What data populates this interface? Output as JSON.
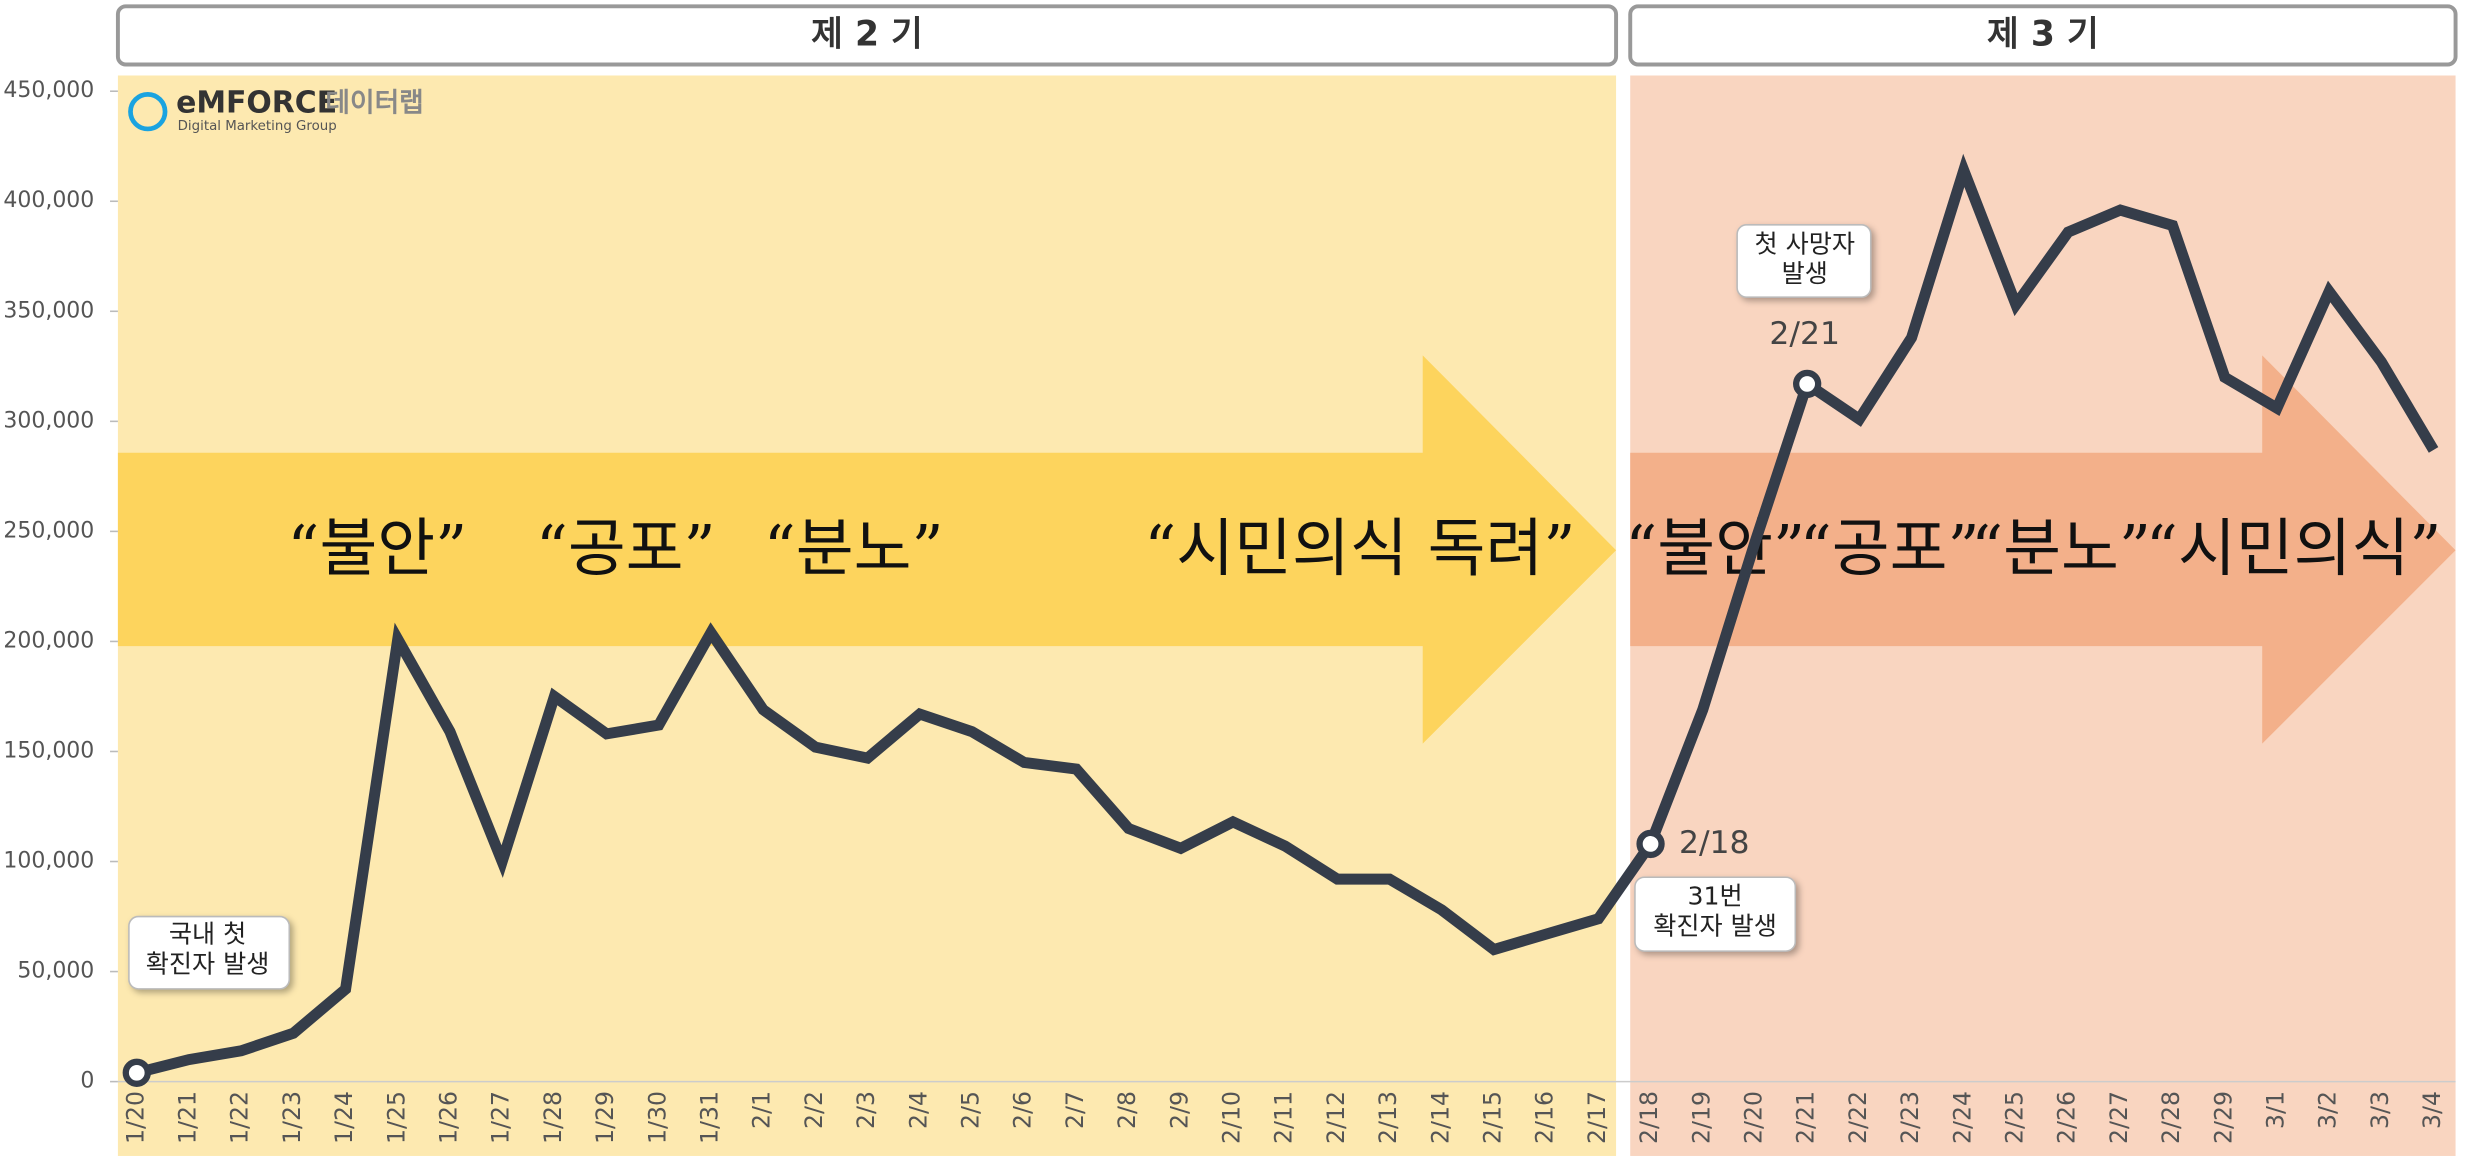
{
  "chart_data": {
    "type": "line",
    "categories": [
      "1/20",
      "1/21",
      "1/22",
      "1/23",
      "1/24",
      "1/25",
      "1/26",
      "1/27",
      "1/28",
      "1/29",
      "1/30",
      "1/31",
      "2/1",
      "2/2",
      "2/3",
      "2/4",
      "2/5",
      "2/6",
      "2/7",
      "2/8",
      "2/9",
      "2/10",
      "2/11",
      "2/12",
      "2/13",
      "2/14",
      "2/15",
      "2/16",
      "2/17",
      "2/18",
      "2/19",
      "2/20",
      "2/21",
      "2/22",
      "2/23",
      "2/24",
      "2/25",
      "2/26",
      "2/27",
      "2/28",
      "2/29",
      "3/1",
      "3/2",
      "3/3",
      "3/4"
    ],
    "values": [
      4000,
      10000,
      14000,
      22000,
      42000,
      201000,
      159000,
      100000,
      175000,
      158000,
      162000,
      204000,
      169000,
      152000,
      147000,
      167000,
      159000,
      145000,
      142000,
      115000,
      106000,
      118000,
      107000,
      92000,
      92000,
      78000,
      60000,
      67000,
      74000,
      108000,
      169000,
      245000,
      317000,
      301000,
      338000,
      414000,
      353000,
      386000,
      396000,
      389000,
      320000,
      306000,
      359000,
      327000,
      287000
    ],
    "color": "#353d4a",
    "ylim": [
      0,
      450000
    ],
    "yticks": [
      0,
      {
        "value": 50000,
        "label": "50,000"
      },
      {
        "value": 100000,
        "label": "100,000"
      },
      {
        "value": 150000,
        "label": "150,000"
      },
      {
        "value": 200000,
        "label": "200,000"
      },
      {
        "value": 250000,
        "label": "250,000"
      },
      {
        "value": 300000,
        "label": "300,000"
      },
      {
        "value": 350000,
        "label": "350,000"
      },
      {
        "value": 400000,
        "label": "400,000"
      },
      {
        "value": 450000,
        "label": "450,000"
      }
    ],
    "periods": [
      {
        "label": "제 2 기",
        "color": "#fde9b0",
        "arrow_color": "#fdd45d",
        "arrow_labels": [
          "“불안”",
          "“공포”",
          "“분노”",
          "“시민의식 독려”"
        ]
      },
      {
        "label": "제 3 기",
        "color": "#f9d5c0",
        "arrow_color": "#f3b08a",
        "arrow_labels": [
          "“불안”",
          "“공포”",
          "“분노”",
          "“시민의식”"
        ]
      }
    ],
    "annotations": [
      {
        "text": [
          "국내 첫",
          "확진자 발생"
        ]
      },
      {
        "text": [
          "31번",
          "확진자 발생"
        ],
        "label": "2/18"
      },
      {
        "text": [
          "첫 사망자",
          "발생"
        ],
        "label": "2/21"
      }
    ],
    "logo": {
      "brand": "eMFORCE",
      "lab": "데이터랩",
      "tagline": "Digital Marketing Group"
    }
  }
}
